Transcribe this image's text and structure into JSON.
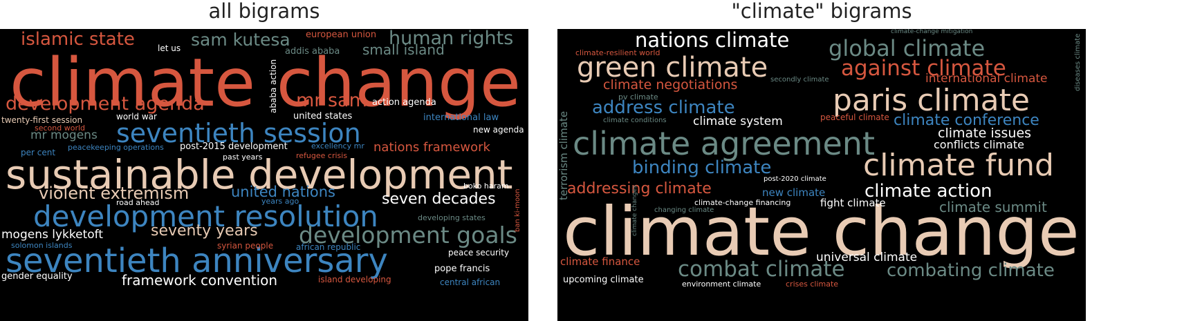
{
  "colors": {
    "red": "#d6573f",
    "blue": "#3d85c0",
    "beige": "#e8cbb4",
    "gray": "#6b8a85",
    "white": "#ffffff",
    "background": "#000000"
  },
  "left": {
    "title": "all bigrams",
    "words": [
      {
        "text": "climate change",
        "color": "red"
      },
      {
        "text": "sustainable development",
        "color": "beige"
      },
      {
        "text": "seventieth anniversary",
        "color": "blue"
      },
      {
        "text": "development resolution",
        "color": "blue"
      },
      {
        "text": "seventieth session",
        "color": "blue"
      },
      {
        "text": "development agenda",
        "color": "red"
      },
      {
        "text": "islamic state",
        "color": "red"
      },
      {
        "text": "human rights",
        "color": "gray"
      },
      {
        "text": "sam kutesa",
        "color": "gray"
      },
      {
        "text": "mr sam",
        "color": "red"
      },
      {
        "text": "small island",
        "color": "gray"
      },
      {
        "text": "violent extremism",
        "color": "beige"
      },
      {
        "text": "united nations",
        "color": "blue"
      },
      {
        "text": "development goals",
        "color": "gray"
      },
      {
        "text": "seven decades",
        "color": "white"
      },
      {
        "text": "seventy years",
        "color": "beige"
      },
      {
        "text": "mogens lykketoft",
        "color": "white"
      },
      {
        "text": "framework convention",
        "color": "white"
      },
      {
        "text": "nations framework",
        "color": "red"
      },
      {
        "text": "mr mogens",
        "color": "gray"
      },
      {
        "text": "european union",
        "color": "red"
      },
      {
        "text": "addis ababa",
        "color": "gray"
      },
      {
        "text": "let us",
        "color": "white"
      },
      {
        "text": "ababa action",
        "color": "white"
      },
      {
        "text": "action agenda",
        "color": "white"
      },
      {
        "text": "united states",
        "color": "white"
      },
      {
        "text": "international law",
        "color": "blue"
      },
      {
        "text": "new agenda",
        "color": "white"
      },
      {
        "text": "world war",
        "color": "white"
      },
      {
        "text": "twenty-first session",
        "color": "beige"
      },
      {
        "text": "second world",
        "color": "red"
      },
      {
        "text": "per cent",
        "color": "blue"
      },
      {
        "text": "peacekeeping operations",
        "color": "blue"
      },
      {
        "text": "post-2015 development",
        "color": "white"
      },
      {
        "text": "past years",
        "color": "white"
      },
      {
        "text": "excellency mr",
        "color": "blue"
      },
      {
        "text": "refugee crisis",
        "color": "red"
      },
      {
        "text": "boko haram",
        "color": "white"
      },
      {
        "text": "ban ki-moon",
        "color": "red"
      },
      {
        "text": "road ahead",
        "color": "white"
      },
      {
        "text": "years ago",
        "color": "blue"
      },
      {
        "text": "developing states",
        "color": "gray"
      },
      {
        "text": "solomon islands",
        "color": "blue"
      },
      {
        "text": "syrian people",
        "color": "red"
      },
      {
        "text": "african republic",
        "color": "blue"
      },
      {
        "text": "peace security",
        "color": "white"
      },
      {
        "text": "pope francis",
        "color": "white"
      },
      {
        "text": "gender equality",
        "color": "white"
      },
      {
        "text": "island developing",
        "color": "red"
      },
      {
        "text": "central african",
        "color": "blue"
      }
    ]
  },
  "right": {
    "title": "\"climate\" bigrams",
    "words": [
      {
        "text": "climate change",
        "color": "beige"
      },
      {
        "text": "climate agreement",
        "color": "gray"
      },
      {
        "text": "paris climate",
        "color": "beige"
      },
      {
        "text": "climate fund",
        "color": "beige"
      },
      {
        "text": "green climate",
        "color": "beige"
      },
      {
        "text": "nations climate",
        "color": "white"
      },
      {
        "text": "global climate",
        "color": "gray"
      },
      {
        "text": "against climate",
        "color": "red"
      },
      {
        "text": "address climate",
        "color": "blue"
      },
      {
        "text": "binding climate",
        "color": "blue"
      },
      {
        "text": "climate action",
        "color": "white"
      },
      {
        "text": "combat climate",
        "color": "gray"
      },
      {
        "text": "combating climate",
        "color": "gray"
      },
      {
        "text": "climate negotiations",
        "color": "red"
      },
      {
        "text": "international climate",
        "color": "red"
      },
      {
        "text": "climate conference",
        "color": "blue"
      },
      {
        "text": "climate issues",
        "color": "white"
      },
      {
        "text": "conflicts climate",
        "color": "white"
      },
      {
        "text": "addressing climate",
        "color": "red"
      },
      {
        "text": "climate summit",
        "color": "gray"
      },
      {
        "text": "climate system",
        "color": "white"
      },
      {
        "text": "universal climate",
        "color": "white"
      },
      {
        "text": "new climate",
        "color": "blue"
      },
      {
        "text": "fight climate",
        "color": "white"
      },
      {
        "text": "climate finance",
        "color": "red"
      },
      {
        "text": "upcoming climate",
        "color": "white"
      },
      {
        "text": "terrorism climate",
        "color": "gray"
      },
      {
        "text": "climate-resilient world",
        "color": "red"
      },
      {
        "text": "pv climate",
        "color": "gray"
      },
      {
        "text": "secondly climate",
        "color": "gray"
      },
      {
        "text": "climate conditions",
        "color": "gray"
      },
      {
        "text": "peaceful climate",
        "color": "red"
      },
      {
        "text": "post-2020 climate",
        "color": "white"
      },
      {
        "text": "climate-change financing",
        "color": "white"
      },
      {
        "text": "changing climate",
        "color": "gray"
      },
      {
        "text": "climate changes",
        "color": "gray"
      },
      {
        "text": "climate-change mitigation",
        "color": "gray"
      },
      {
        "text": "diseases climate",
        "color": "gray"
      },
      {
        "text": "environment climate",
        "color": "white"
      },
      {
        "text": "crises climate",
        "color": "red"
      }
    ]
  }
}
